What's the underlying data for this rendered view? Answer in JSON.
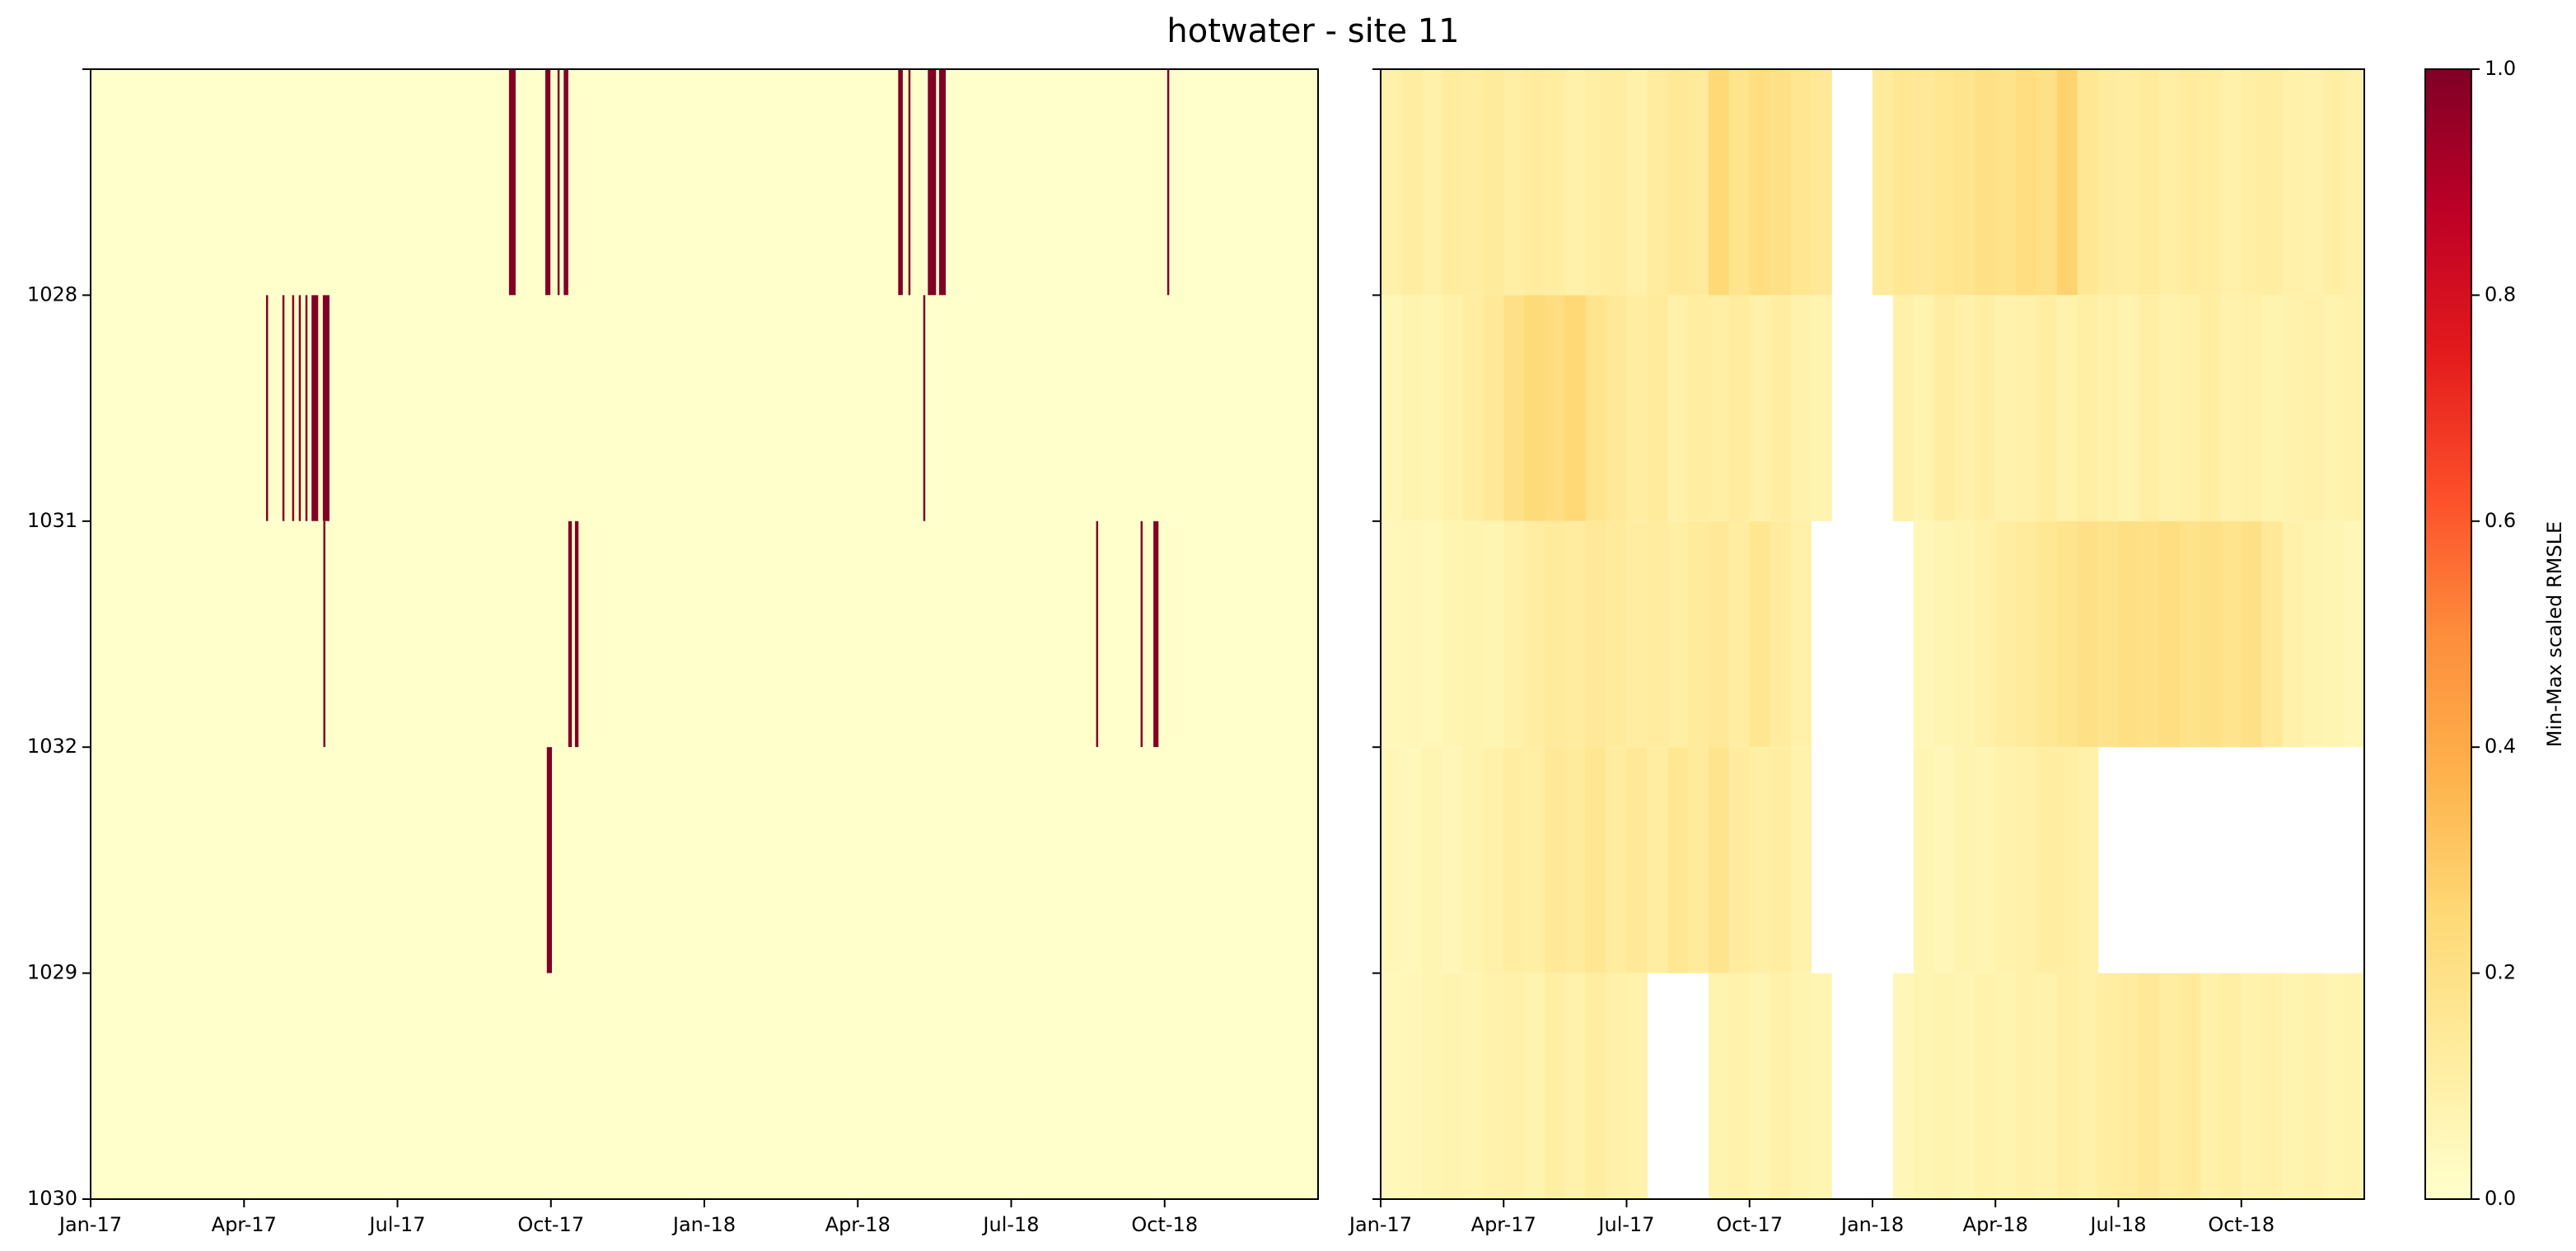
{
  "chart_data": {
    "type": "heatmap",
    "title": "hotwater - site 11",
    "y_labels": [
      null,
      "1028",
      "1031",
      "1032",
      "1029",
      "1030"
    ],
    "xlim": [
      0,
      24
    ],
    "xticks": [
      {
        "value": 0,
        "label": "Jan-17"
      },
      {
        "value": 3,
        "label": "Apr-17"
      },
      {
        "value": 6,
        "label": "Jul-17"
      },
      {
        "value": 9,
        "label": "Oct-17"
      },
      {
        "value": 12,
        "label": "Jan-18"
      },
      {
        "value": 15,
        "label": "Apr-18"
      },
      {
        "value": 18,
        "label": "Jul-18"
      },
      {
        "value": 21,
        "label": "Oct-18"
      }
    ],
    "clim": [
      0,
      1
    ],
    "colorbar_ticks": [
      {
        "value": 0,
        "label": "0.0"
      },
      {
        "value": 0.2,
        "label": "0.2"
      },
      {
        "value": 0.4,
        "label": "0.4"
      },
      {
        "value": 0.6,
        "label": "0.6"
      },
      {
        "value": 0.8,
        "label": "0.8"
      },
      {
        "value": 1,
        "label": "1.0"
      }
    ],
    "colorbar_label": "Min-Max scaled RMSLE",
    "cmap": [
      "#ffffcc",
      "#ffeda0",
      "#fed976",
      "#feb24c",
      "#fd8d3c",
      "#fc4e2a",
      "#e31a1c",
      "#bd0026",
      "#800026"
    ],
    "panels": [
      {
        "base_value": 0,
        "rows": [
          {
            "events": [
              {
                "x": [
                  8.18,
                  8.31
                ],
                "value": 1
              },
              {
                "x": [
                  8.89,
                  8.99
                ],
                "value": 1
              },
              {
                "x": [
                  9.13,
                  9.17
                ],
                "value": 1
              },
              {
                "x": [
                  9.25,
                  9.34
                ],
                "value": 1
              },
              {
                "x": [
                  15.79,
                  15.88
                ],
                "value": 1
              },
              {
                "x": [
                  15.99,
                  16.03
                ],
                "value": 1
              },
              {
                "x": [
                  16.37,
                  16.53
                ],
                "value": 1
              },
              {
                "x": [
                  16.59,
                  16.72
                ],
                "value": 1
              },
              {
                "x": [
                  21.05,
                  21.09
                ],
                "value": 1
              }
            ]
          },
          {
            "events": [
              {
                "x": [
                  3.43,
                  3.47
                ],
                "value": 1
              },
              {
                "x": [
                  3.75,
                  3.79
                ],
                "value": 1
              },
              {
                "x": [
                  3.94,
                  3.98
                ],
                "value": 1
              },
              {
                "x": [
                  4.07,
                  4.11
                ],
                "value": 1
              },
              {
                "x": [
                  4.2,
                  4.24
                ],
                "value": 1
              },
              {
                "x": [
                  4.32,
                  4.45
                ],
                "value": 1
              },
              {
                "x": [
                  4.54,
                  4.67
                ],
                "value": 1
              },
              {
                "x": [
                  16.28,
                  16.32
                ],
                "value": 1
              }
            ]
          },
          {
            "events": [
              {
                "x": [
                  4.55,
                  4.59
                ],
                "value": 1
              },
              {
                "x": [
                  9.34,
                  9.41
                ],
                "value": 1
              },
              {
                "x": [
                  9.47,
                  9.54
                ],
                "value": 1
              },
              {
                "x": [
                  19.66,
                  19.7
                ],
                "value": 1
              },
              {
                "x": [
                  20.53,
                  20.57
                ],
                "value": 1
              },
              {
                "x": [
                  20.78,
                  20.88
                ],
                "value": 1
              }
            ]
          },
          {
            "events": [
              {
                "x": [
                  8.92,
                  9.02
                ],
                "value": 1
              }
            ]
          },
          {
            "events": []
          }
        ]
      },
      {
        "rows": [
          {
            "values": [
              0.1,
              0.12,
              0.1,
              0.13,
              0.12,
              0.14,
              0.11,
              0.13,
              0.12,
              0.1,
              0.11,
              0.12,
              0.1,
              0.13,
              0.15,
              0.14,
              0.25,
              0.18,
              0.22,
              0.2,
              0.17,
              0.15,
              null,
              null,
              0.14,
              0.16,
              0.15,
              0.17,
              0.18,
              0.2,
              0.19,
              0.22,
              0.2,
              0.27,
              0.16,
              0.13,
              0.12,
              0.14,
              0.11,
              0.13,
              0.12,
              0.1,
              0.11,
              0.12,
              0.1,
              0.09,
              0.11,
              0.1
            ]
          },
          {
            "values": [
              0.06,
              0.08,
              0.07,
              0.1,
              0.12,
              0.15,
              0.2,
              0.24,
              0.22,
              0.25,
              0.18,
              0.15,
              0.12,
              0.14,
              0.1,
              0.12,
              0.11,
              0.13,
              0.1,
              0.12,
              0.09,
              0.08,
              null,
              null,
              null,
              0.1,
              0.08,
              0.12,
              0.1,
              0.11,
              0.09,
              0.1,
              0.12,
              0.09,
              0.11,
              0.1,
              0.08,
              0.11,
              0.09,
              0.1,
              0.12,
              0.09,
              0.1,
              0.08,
              0.09,
              0.1,
              0.08,
              0.09
            ]
          },
          {
            "values": [
              0.05,
              0.06,
              0.05,
              0.07,
              0.08,
              0.07,
              0.1,
              0.12,
              0.14,
              0.13,
              0.15,
              0.14,
              0.12,
              0.13,
              0.11,
              0.14,
              0.15,
              0.12,
              0.17,
              0.13,
              0.1,
              null,
              null,
              null,
              null,
              null,
              0.06,
              0.07,
              0.08,
              0.1,
              0.12,
              0.14,
              0.16,
              0.18,
              0.2,
              0.19,
              0.21,
              0.2,
              0.22,
              0.19,
              0.2,
              0.18,
              0.2,
              0.15,
              0.1,
              0.08,
              0.07,
              0.06
            ]
          },
          {
            "values": [
              0.06,
              0.05,
              0.07,
              0.06,
              0.08,
              0.1,
              0.12,
              0.11,
              0.15,
              0.14,
              0.17,
              0.13,
              0.15,
              0.12,
              0.16,
              0.14,
              0.18,
              0.13,
              0.11,
              0.12,
              0.09,
              null,
              null,
              null,
              null,
              null,
              0.07,
              0.06,
              0.08,
              0.07,
              0.09,
              0.1,
              0.12,
              0.11,
              0.1,
              null,
              null,
              null,
              null,
              null,
              null,
              null,
              null,
              null,
              null,
              null,
              null,
              null
            ]
          },
          {
            "values": [
              0.05,
              0.06,
              0.07,
              0.08,
              0.07,
              0.09,
              0.1,
              0.08,
              0.11,
              0.09,
              0.12,
              0.1,
              0.09,
              null,
              null,
              null,
              0.08,
              0.09,
              0.07,
              0.1,
              0.08,
              0.07,
              null,
              null,
              null,
              0.06,
              0.07,
              0.08,
              0.07,
              0.09,
              0.08,
              0.1,
              0.09,
              0.11,
              0.1,
              0.12,
              0.13,
              0.15,
              0.12,
              0.14,
              0.1,
              0.11,
              0.09,
              0.1,
              0.08,
              0.09,
              0.07,
              0.08
            ]
          }
        ]
      }
    ]
  }
}
